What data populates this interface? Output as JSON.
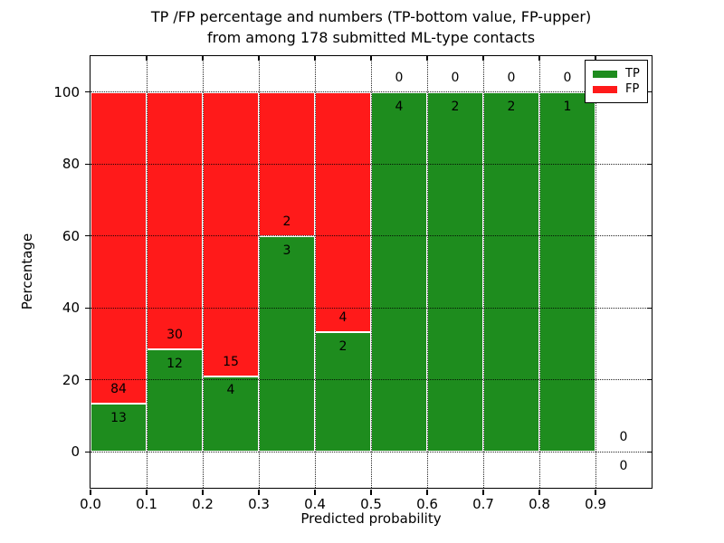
{
  "figure": {
    "title_line1": "TP /FP percentage and numbers (TP-bottom value, FP-upper)",
    "title_line2": "from among 178 submitted ML-type contacts"
  },
  "axes": {
    "xlabel": "Predicted probability",
    "ylabel": "Percentage",
    "xlim": [
      0.0,
      1.0
    ],
    "ylim": [
      -10,
      110
    ],
    "xtick_values": [
      0.0,
      0.1,
      0.2,
      0.3,
      0.4,
      0.5,
      0.6,
      0.7,
      0.8,
      0.9
    ],
    "xtick_labels": [
      "0.0",
      "0.1",
      "0.2",
      "0.3",
      "0.4",
      "0.5",
      "0.6",
      "0.7",
      "0.8",
      "0.9"
    ],
    "ytick_values": [
      0,
      20,
      40,
      60,
      80,
      100
    ],
    "ytick_labels": [
      "0",
      "20",
      "40",
      "60",
      "80",
      "100"
    ],
    "grid": true,
    "grid_style": "dotted"
  },
  "legend": {
    "position": "upper-right",
    "items": [
      {
        "label": "TP",
        "color": "#1e8c1e"
      },
      {
        "label": "FP",
        "color": "#ff1a1a"
      }
    ]
  },
  "colors": {
    "tp": "#1e8c1e",
    "fp": "#ff1a1a",
    "background": "#ffffff",
    "text": "#000000",
    "grid": "#000000",
    "bar_edge": "#ffffff"
  },
  "chart_data": {
    "type": "bar",
    "stacked": true,
    "total_contacts": 178,
    "bin_width": 0.1,
    "label_rule": "TP count below green top, FP count above green top",
    "bins": [
      {
        "x0": 0.0,
        "x1": 0.1,
        "tp": 13,
        "fp": 84,
        "tp_pct": 13.4
      },
      {
        "x0": 0.1,
        "x1": 0.2,
        "tp": 12,
        "fp": 30,
        "tp_pct": 28.57
      },
      {
        "x0": 0.2,
        "x1": 0.3,
        "tp": 4,
        "fp": 15,
        "tp_pct": 21.05
      },
      {
        "x0": 0.3,
        "x1": 0.4,
        "tp": 3,
        "fp": 2,
        "tp_pct": 60.0
      },
      {
        "x0": 0.4,
        "x1": 0.5,
        "tp": 2,
        "fp": 4,
        "tp_pct": 33.33
      },
      {
        "x0": 0.5,
        "x1": 0.6,
        "tp": 4,
        "fp": 0,
        "tp_pct": 100.0
      },
      {
        "x0": 0.6,
        "x1": 0.7,
        "tp": 2,
        "fp": 0,
        "tp_pct": 100.0
      },
      {
        "x0": 0.7,
        "x1": 0.8,
        "tp": 2,
        "fp": 0,
        "tp_pct": 100.0
      },
      {
        "x0": 0.8,
        "x1": 0.9,
        "tp": 1,
        "fp": 0,
        "tp_pct": 100.0
      },
      {
        "x0": 0.9,
        "x1": 1.0,
        "tp": 0,
        "fp": 0,
        "tp_pct": 0.0
      }
    ]
  }
}
